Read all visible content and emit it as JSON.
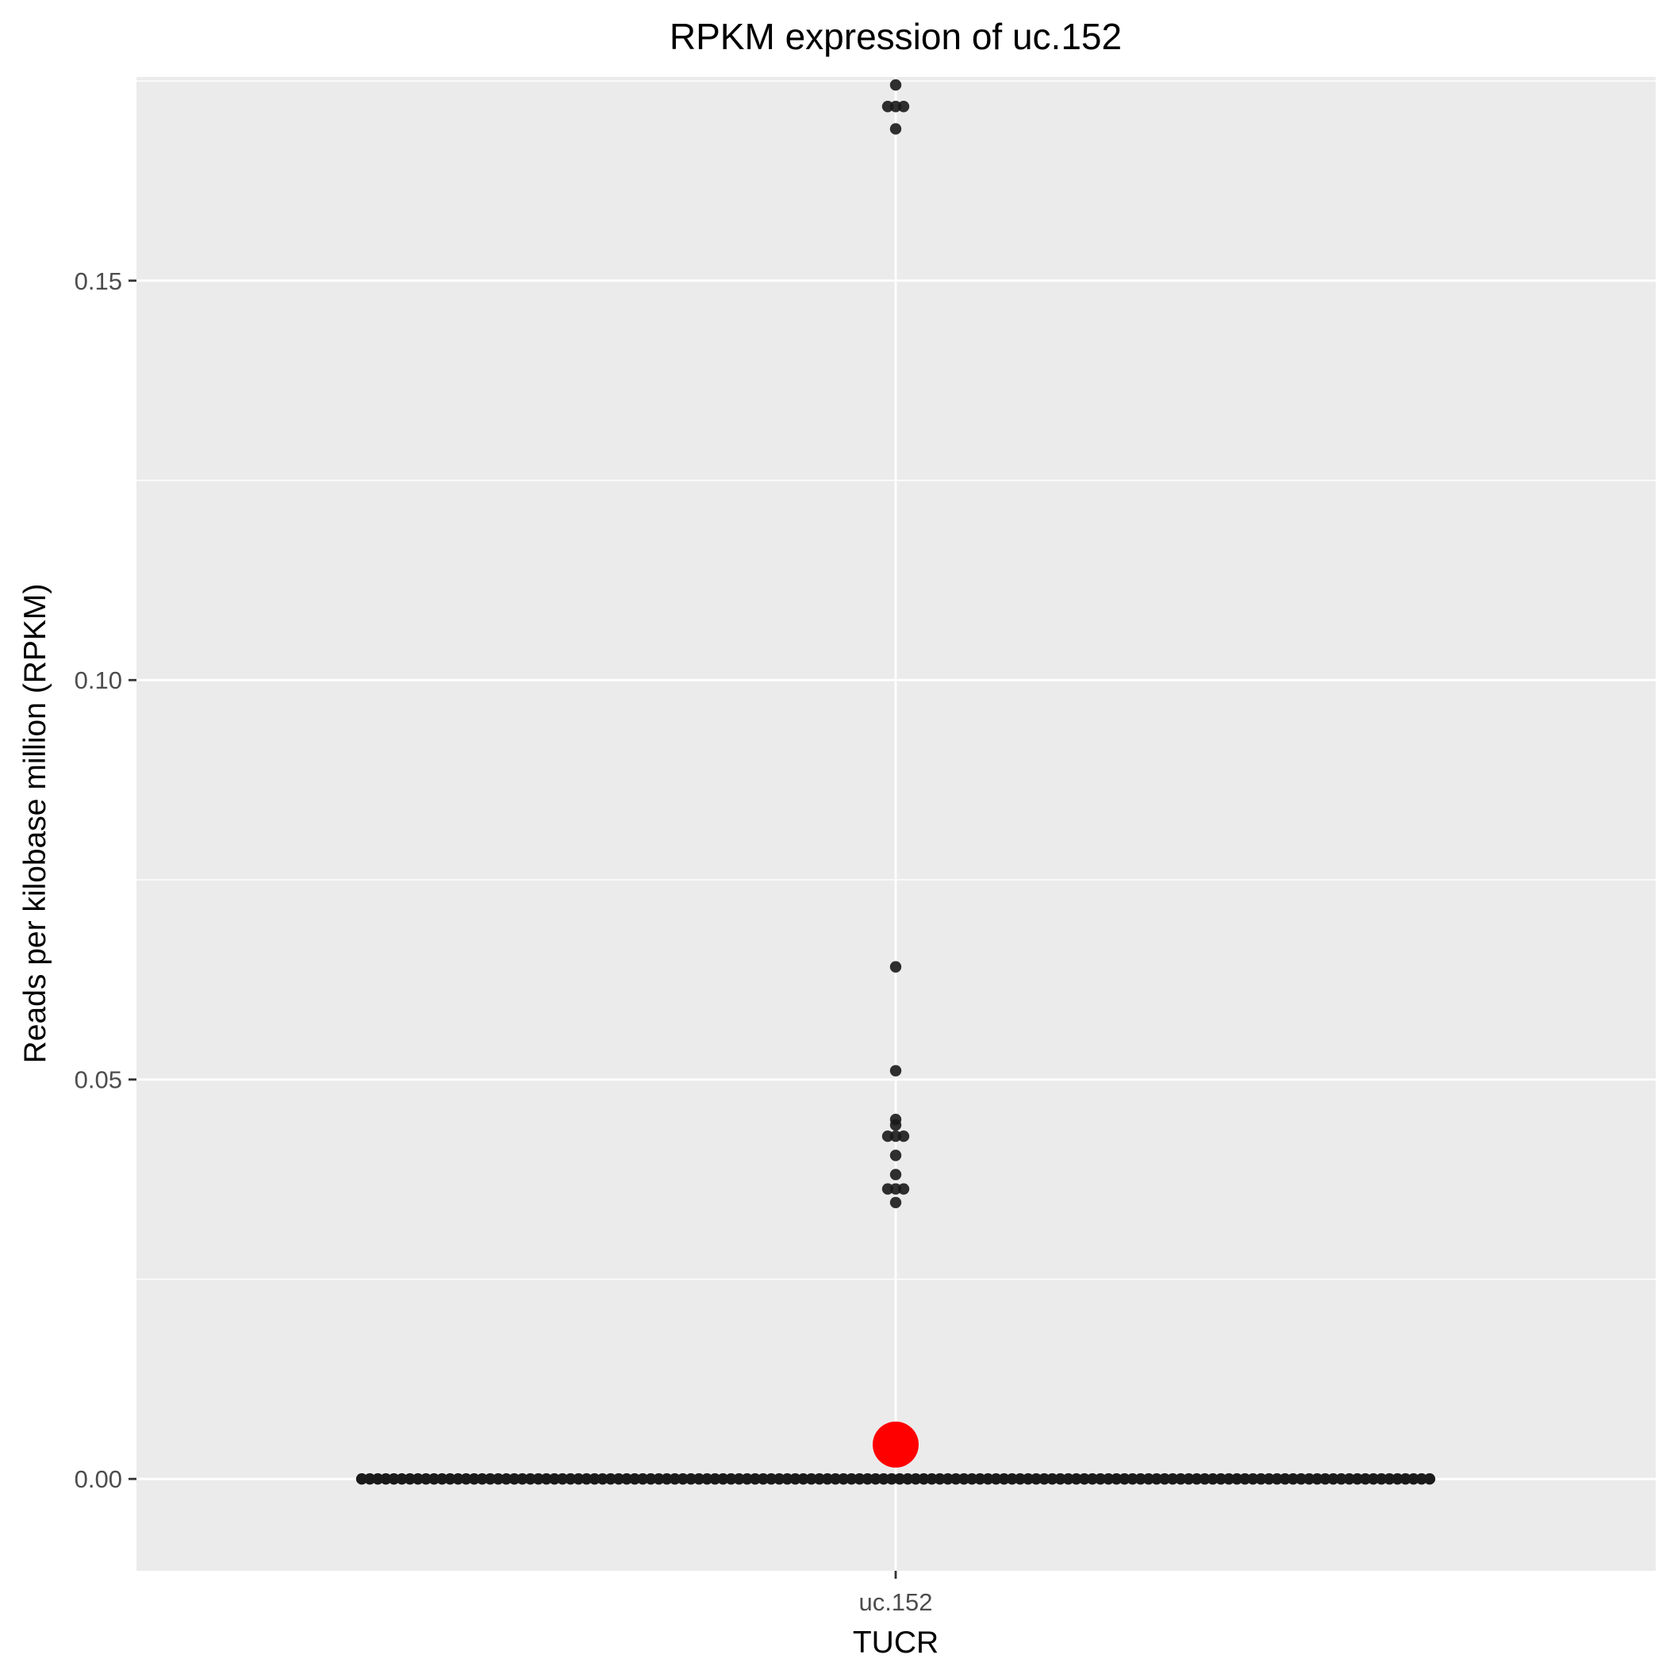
{
  "chart_data": {
    "type": "scatter",
    "title": "RPKM expression of  uc.152",
    "xlabel": "TUCR",
    "ylabel": "Reads per kilobase million (RPKM)",
    "categories": [
      "uc.152"
    ],
    "ylim": [
      -0.0115,
      0.1755
    ],
    "yticks": [
      0.0,
      0.05,
      0.1,
      0.15
    ],
    "ytick_labels": [
      "0.00",
      "0.05",
      "0.10",
      "0.15"
    ],
    "grid": true,
    "legend": "none",
    "colors": {
      "panel_background": "#ebebeb",
      "grid": "#ffffff",
      "points": "#1a1a1a",
      "highlight": "#ff0000",
      "tick": "#333333"
    },
    "series": [
      {
        "values": [
          0.1745,
          0.1718,
          0.1718,
          0.1718,
          0.169,
          0.0641,
          0.0511,
          0.045,
          0.0443,
          0.0429,
          0.0429,
          0.0429,
          0.0405,
          0.0381,
          0.0363,
          0.0363,
          0.0363,
          0.0346
        ],
        "zero_count": 134
      },
      {
        "values": [
          0.0043
        ],
        "style": "highlight"
      }
    ]
  }
}
